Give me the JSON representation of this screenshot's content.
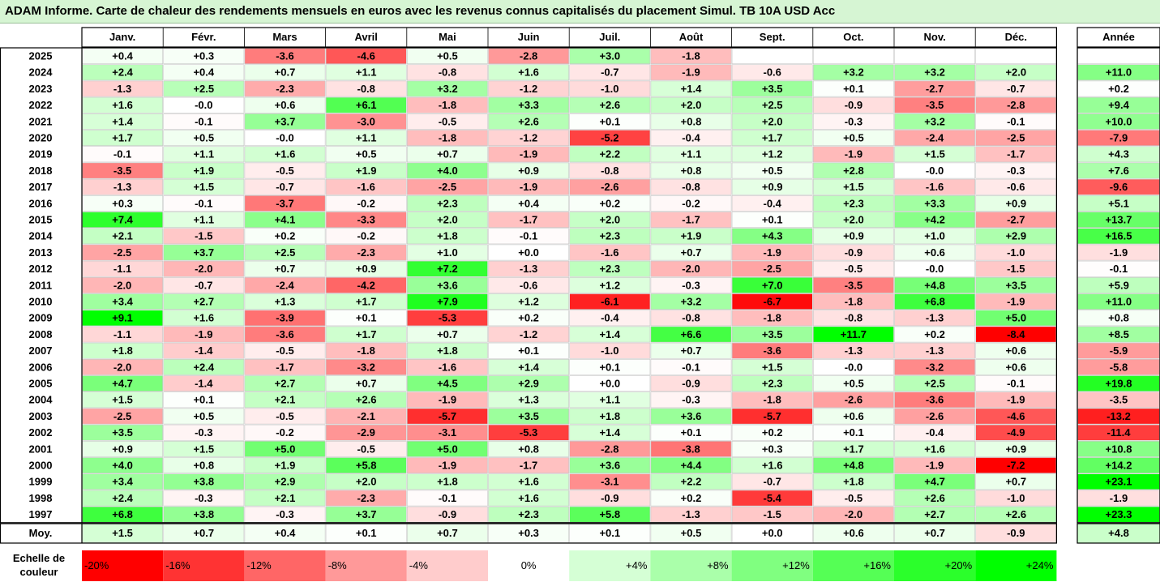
{
  "title": "ADAM Informe. Carte de chaleur des rendements mensuels en euros avec les revenus connus capitalisés du placement Simul. TB 10A USD Acc",
  "chart_data": {
    "type": "heatmap",
    "columns": [
      "Janv.",
      "Févr.",
      "Mars",
      "Avril",
      "Mai",
      "Juin",
      "Juil.",
      "Août",
      "Sept.",
      "Oct.",
      "Nov.",
      "Déc."
    ],
    "year_column_label": "Année",
    "rows": [
      {
        "year": "2025",
        "values": [
          0.4,
          0.3,
          -3.6,
          -4.6,
          0.5,
          -2.8,
          3.0,
          -1.8,
          null,
          null,
          null,
          null
        ],
        "annual": null
      },
      {
        "year": "2024",
        "values": [
          2.4,
          0.4,
          0.7,
          1.1,
          -0.8,
          1.6,
          -0.7,
          -1.9,
          -0.6,
          3.2,
          3.2,
          2.0
        ],
        "annual": 11.0
      },
      {
        "year": "2023",
        "values": [
          -1.3,
          2.5,
          -2.3,
          -0.8,
          3.2,
          -1.2,
          -1.0,
          1.4,
          3.5,
          0.1,
          -2.7,
          -0.7
        ],
        "annual": 0.2
      },
      {
        "year": "2022",
        "values": [
          1.6,
          -0.0,
          0.6,
          6.1,
          -1.8,
          3.3,
          2.6,
          2.0,
          2.5,
          -0.9,
          -3.5,
          -2.8
        ],
        "annual": 9.4
      },
      {
        "year": "2021",
        "values": [
          1.4,
          -0.1,
          3.7,
          -3.0,
          -0.5,
          2.6,
          0.1,
          0.8,
          2.0,
          -0.3,
          3.2,
          -0.1
        ],
        "annual": 10.0
      },
      {
        "year": "2020",
        "values": [
          1.7,
          0.5,
          -0.0,
          1.1,
          -1.8,
          -1.2,
          -5.2,
          -0.4,
          1.7,
          0.5,
          -2.4,
          -2.5
        ],
        "annual": -7.9
      },
      {
        "year": "2019",
        "values": [
          -0.1,
          1.1,
          1.6,
          0.5,
          0.7,
          -1.9,
          2.2,
          1.1,
          1.2,
          -1.9,
          1.5,
          -1.7
        ],
        "annual": 4.3
      },
      {
        "year": "2018",
        "values": [
          -3.5,
          1.9,
          -0.5,
          1.9,
          4.0,
          0.9,
          -0.8,
          0.8,
          0.5,
          2.8,
          -0.0,
          -0.3
        ],
        "annual": 7.6
      },
      {
        "year": "2017",
        "values": [
          -1.3,
          1.5,
          -0.7,
          -1.6,
          -2.5,
          -1.9,
          -2.6,
          -0.8,
          0.9,
          1.5,
          -1.6,
          -0.6
        ],
        "annual": -9.6
      },
      {
        "year": "2016",
        "values": [
          0.3,
          -0.1,
          -3.7,
          -0.2,
          2.3,
          0.4,
          0.2,
          -0.2,
          -0.4,
          2.3,
          3.3,
          0.9
        ],
        "annual": 5.1
      },
      {
        "year": "2015",
        "values": [
          7.4,
          1.1,
          4.1,
          -3.3,
          2.0,
          -1.7,
          2.0,
          -1.7,
          0.1,
          2.0,
          4.2,
          -2.7
        ],
        "annual": 13.7
      },
      {
        "year": "2014",
        "values": [
          2.1,
          -1.5,
          0.2,
          -0.2,
          1.8,
          -0.1,
          2.3,
          1.9,
          4.3,
          0.9,
          1.0,
          2.9
        ],
        "annual": 16.5
      },
      {
        "year": "2013",
        "values": [
          -2.5,
          3.7,
          2.5,
          -2.3,
          1.0,
          0.0,
          -1.6,
          0.7,
          -1.9,
          -0.9,
          0.6,
          -1.0
        ],
        "annual": -1.9
      },
      {
        "year": "2012",
        "values": [
          -1.1,
          -2.0,
          0.7,
          0.9,
          7.2,
          -1.3,
          2.3,
          -2.0,
          -2.5,
          -0.5,
          -0.0,
          -1.5
        ],
        "annual": -0.1
      },
      {
        "year": "2011",
        "values": [
          -2.0,
          -0.7,
          -2.4,
          -4.2,
          3.6,
          -0.6,
          1.2,
          -0.3,
          7.0,
          -3.5,
          4.8,
          3.5
        ],
        "annual": 5.9
      },
      {
        "year": "2010",
        "values": [
          3.4,
          2.7,
          1.3,
          1.7,
          7.9,
          1.2,
          -6.1,
          3.2,
          -6.7,
          -1.8,
          6.8,
          -1.9
        ],
        "annual": 11.0
      },
      {
        "year": "2009",
        "values": [
          9.1,
          1.6,
          -3.9,
          0.1,
          -5.3,
          0.2,
          -0.4,
          -0.8,
          -1.8,
          -0.8,
          -1.3,
          5.0
        ],
        "annual": 0.8
      },
      {
        "year": "2008",
        "values": [
          -1.1,
          -1.9,
          -3.6,
          1.7,
          0.7,
          -1.2,
          1.4,
          6.6,
          3.5,
          11.7,
          0.2,
          -8.4
        ],
        "annual": 8.5
      },
      {
        "year": "2007",
        "values": [
          1.8,
          -1.4,
          -0.5,
          -1.8,
          1.8,
          0.1,
          -1.0,
          0.7,
          -3.6,
          -1.3,
          -1.3,
          0.6
        ],
        "annual": -5.9
      },
      {
        "year": "2006",
        "values": [
          -2.0,
          2.4,
          -1.7,
          -3.2,
          -1.6,
          1.4,
          0.1,
          -0.1,
          1.5,
          -0.0,
          -3.2,
          0.6
        ],
        "annual": -5.8
      },
      {
        "year": "2005",
        "values": [
          4.7,
          -1.4,
          2.7,
          0.7,
          4.5,
          2.9,
          0.0,
          -0.9,
          2.3,
          0.5,
          2.5,
          -0.1
        ],
        "annual": 19.8
      },
      {
        "year": "2004",
        "values": [
          1.5,
          0.1,
          2.1,
          2.6,
          -1.9,
          1.3,
          1.1,
          -0.3,
          -1.8,
          -2.6,
          -3.6,
          -1.9
        ],
        "annual": -3.5
      },
      {
        "year": "2003",
        "values": [
          -2.5,
          0.5,
          -0.5,
          -2.1,
          -5.7,
          3.5,
          1.8,
          3.6,
          -5.7,
          0.6,
          -2.6,
          -4.6
        ],
        "annual": -13.2
      },
      {
        "year": "2002",
        "values": [
          3.5,
          -0.3,
          -0.2,
          -2.9,
          -3.1,
          -5.3,
          1.4,
          0.1,
          0.2,
          0.1,
          -0.4,
          -4.9
        ],
        "annual": -11.4
      },
      {
        "year": "2001",
        "values": [
          0.9,
          1.5,
          5.0,
          -0.5,
          5.0,
          0.8,
          -2.8,
          -3.8,
          0.3,
          1.7,
          1.6,
          0.9
        ],
        "annual": 10.8
      },
      {
        "year": "2000",
        "values": [
          4.0,
          0.8,
          1.9,
          5.8,
          -1.9,
          -1.7,
          3.6,
          4.4,
          1.6,
          4.8,
          -1.9,
          -7.2
        ],
        "annual": 14.2
      },
      {
        "year": "1999",
        "values": [
          3.4,
          3.8,
          2.9,
          2.0,
          1.8,
          1.6,
          -3.1,
          2.2,
          -0.7,
          1.8,
          4.7,
          0.7
        ],
        "annual": 23.1
      },
      {
        "year": "1998",
        "values": [
          2.4,
          -0.3,
          2.1,
          -2.3,
          -0.1,
          1.6,
          -0.9,
          0.2,
          -5.4,
          -0.5,
          2.6,
          -1.0
        ],
        "annual": -1.9
      },
      {
        "year": "1997",
        "values": [
          6.8,
          3.8,
          -0.3,
          3.7,
          -0.9,
          2.3,
          5.8,
          -1.3,
          -1.5,
          -2.0,
          2.7,
          2.6
        ],
        "annual": 23.3
      }
    ],
    "average": {
      "label": "Moy.",
      "values": [
        1.5,
        0.7,
        0.4,
        0.1,
        0.7,
        0.3,
        0.1,
        0.5,
        0.0,
        0.6,
        0.7,
        -0.9
      ],
      "annual": 4.8
    },
    "scale": {
      "label_line1": "Echelle de",
      "label_line2": "couleur",
      "steps": [
        {
          "label": "-20%",
          "value": -20
        },
        {
          "label": "-16%",
          "value": -16
        },
        {
          "label": "-12%",
          "value": -12
        },
        {
          "label": "-8%",
          "value": -8
        },
        {
          "label": "-4%",
          "value": -4
        },
        {
          "label": "0%",
          "value": 0
        },
        {
          "label": "+4%",
          "value": 4
        },
        {
          "label": "+8%",
          "value": 8
        },
        {
          "label": "+12%",
          "value": 12
        },
        {
          "label": "+16%",
          "value": 16
        },
        {
          "label": "+20%",
          "value": 20
        },
        {
          "label": "+24%",
          "value": 24
        }
      ]
    },
    "colors": {
      "negative_max": "#ff0000",
      "neutral": "#ffffff",
      "positive_max": "#00ff00",
      "title_bg": "#d6f5d3",
      "grid": "#c8c8c8",
      "border": "#000000"
    }
  }
}
